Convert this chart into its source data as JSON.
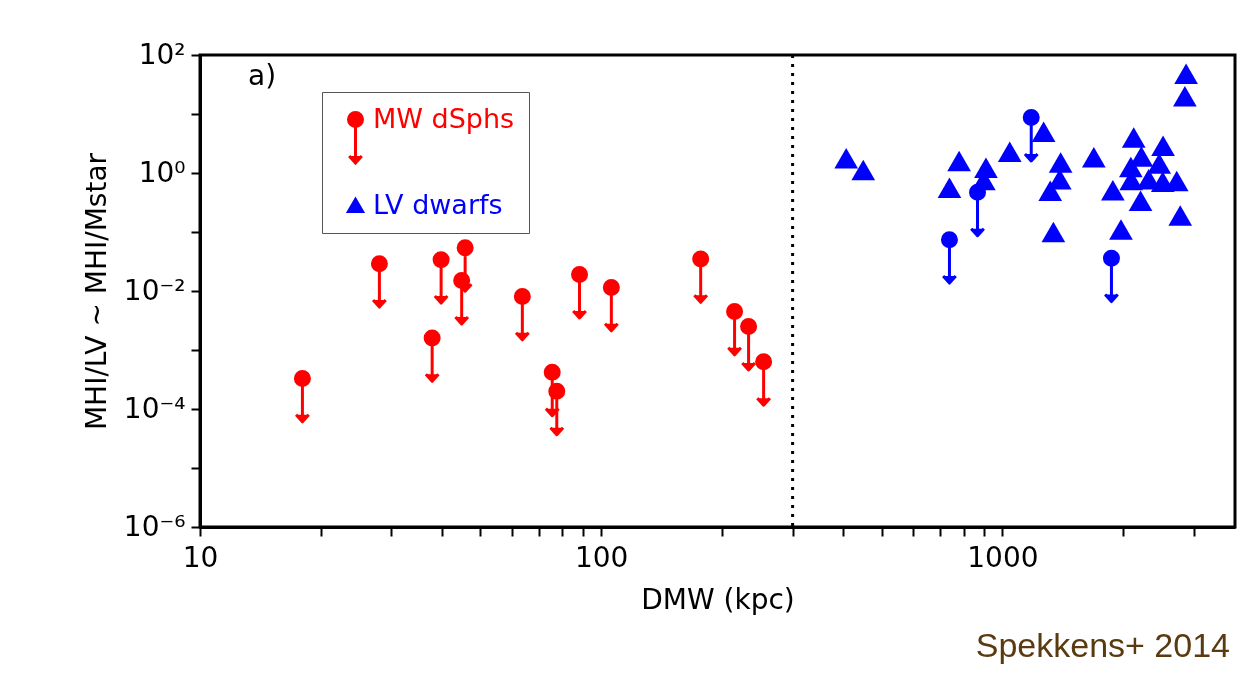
{
  "chart_data": {
    "type": "scatter",
    "xlabel": "DMW (kpc)",
    "ylabel": "MHI/LV ~ MHI/Mstar",
    "annotations": [
      "a)",
      "Spekkens+ 2014"
    ],
    "log": "xy",
    "grid": false,
    "legend": "top left",
    "xlim": [
      10,
      3800
    ],
    "ylim": [
      1e-06,
      100
    ],
    "xticks": [
      10,
      {
        "value": 20,
        "label": null
      },
      {
        "value": 30,
        "label": null
      },
      {
        "value": 40,
        "label": null
      },
      {
        "value": 50,
        "label": null
      },
      {
        "value": 60,
        "label": null
      },
      {
        "value": 70,
        "label": null
      },
      {
        "value": 80,
        "label": null
      },
      {
        "value": 90,
        "label": null
      },
      100,
      {
        "value": 200,
        "label": null
      },
      {
        "value": 300,
        "label": null
      },
      {
        "value": 400,
        "label": null
      },
      {
        "value": 500,
        "label": null
      },
      {
        "value": 600,
        "label": null
      },
      {
        "value": 700,
        "label": null
      },
      {
        "value": 800,
        "label": null
      },
      {
        "value": 900,
        "label": null
      },
      1000,
      {
        "value": 2000,
        "label": null
      },
      {
        "value": 3000,
        "label": null
      }
    ],
    "yticks": [
      {
        "value": 1e-06,
        "label": "10⁻⁶"
      },
      {
        "value": 1e-05,
        "label": null
      },
      {
        "value": 0.0001,
        "label": "10⁻⁴"
      },
      {
        "value": 0.001,
        "label": null
      },
      {
        "value": 0.01,
        "label": "10⁻²"
      },
      {
        "value": 0.1,
        "label": null
      },
      {
        "value": 1,
        "label": "10⁰"
      },
      {
        "value": 10,
        "label": null
      },
      {
        "value": 100,
        "label": "10²"
      }
    ],
    "ref_lines": [
      {
        "axis": "x",
        "value": 300,
        "label": null,
        "color": "#000000",
        "line_style": "dotted"
      }
    ],
    "series": [
      {
        "name": "MW dSphs",
        "color": "#ff0000",
        "marker": "circle",
        "x": [
          18.0,
          28.0,
          37.9,
          39.9,
          44.9,
          45.8,
          63.6,
          75.5,
          77.5,
          88.3,
          106,
          177,
          215,
          233,
          254
        ],
        "values": [
          0.00033,
          0.029,
          0.0016,
          0.034,
          0.015,
          0.054,
          0.0081,
          0.00042,
          0.0002,
          0.019,
          0.0115,
          0.035,
          0.0045,
          0.0025,
          0.00063
        ]
      },
      {
        "color": "#0000ff",
        "marker": "circle",
        "x": [
          1180,
          867,
          738,
          1870
        ],
        "values": [
          8.7,
          0.47,
          0.074,
          0.036
        ]
      },
      {
        "name": "LV dwarfs",
        "color": "#0000ff",
        "marker": "triangle",
        "x": [
          408,
          450,
          738,
          780,
          910,
          899,
          1043,
          1267,
          1397,
          1390,
          1316,
          1340,
          1690,
          1885,
          2125,
          2220,
          2090,
          2095,
          2210,
          1975,
          2515,
          2460,
          2510,
          2315,
          2720,
          2775,
          2870,
          2850
        ],
        "values": [
          1.77,
          1.12,
          0.56,
          1.6,
          1.23,
          0.76,
          2.3,
          5.0,
          1.5,
          0.78,
          0.5,
          0.1,
          1.85,
          0.51,
          4.0,
          1.9,
          1.26,
          0.76,
          0.34,
          0.11,
          2.9,
          1.45,
          0.71,
          0.78,
          0.73,
          0.19,
          48,
          20
        ]
      }
    ]
  }
}
